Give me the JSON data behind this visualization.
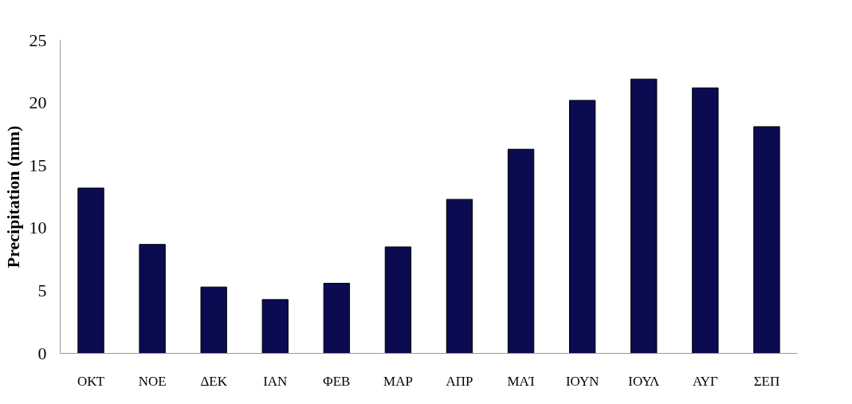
{
  "chart_data": {
    "type": "bar",
    "ylabel": "Precipitation (mm)",
    "categories": [
      "ΟΚΤ",
      "ΝΟΕ",
      "ΔΕΚ",
      "ΙΑΝ",
      "ΦΕΒ",
      "ΜΑΡ",
      "ΑΠΡ",
      "ΜΑΊ",
      "ΙΟΥΝ",
      "ΙΟΥΛ",
      "ΑΥΓ",
      "ΣΕΠ"
    ],
    "values": [
      13.2,
      8.7,
      5.3,
      4.3,
      5.6,
      8.5,
      12.3,
      16.3,
      20.2,
      21.9,
      21.2,
      18.1
    ],
    "color": "#0b0b52",
    "ylim": [
      0,
      25
    ],
    "yticks": [
      0,
      5,
      10,
      15,
      20,
      25
    ],
    "grid": false
  }
}
